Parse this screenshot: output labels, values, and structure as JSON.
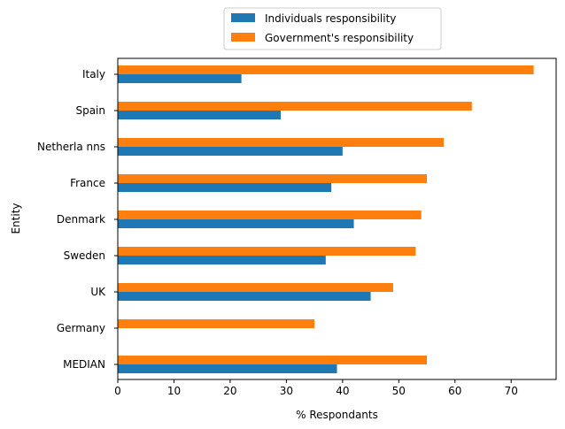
{
  "chart_data": {
    "type": "bar",
    "orientation": "horizontal",
    "categories": [
      "Italy",
      "Spain",
      "Netherla nns",
      "France",
      "Denmark",
      "Sweden",
      "UK",
      "Germany",
      "MEDIAN"
    ],
    "series": [
      {
        "name": "Individuals responsibility",
        "color": "#1f77b4",
        "values": [
          22,
          29,
          40,
          38,
          42,
          37,
          45,
          null,
          39
        ]
      },
      {
        "name": "Government's responsibility",
        "color": "#ff7f0e",
        "values": [
          74,
          63,
          58,
          55,
          54,
          53,
          49,
          35,
          55
        ]
      }
    ],
    "xlabel": "% Respondants",
    "ylabel": "Entity",
    "xlim": [
      0,
      78
    ],
    "xticks": [
      0,
      10,
      20,
      30,
      40,
      50,
      60,
      70
    ],
    "grid": false,
    "legend_position": "top-center"
  }
}
